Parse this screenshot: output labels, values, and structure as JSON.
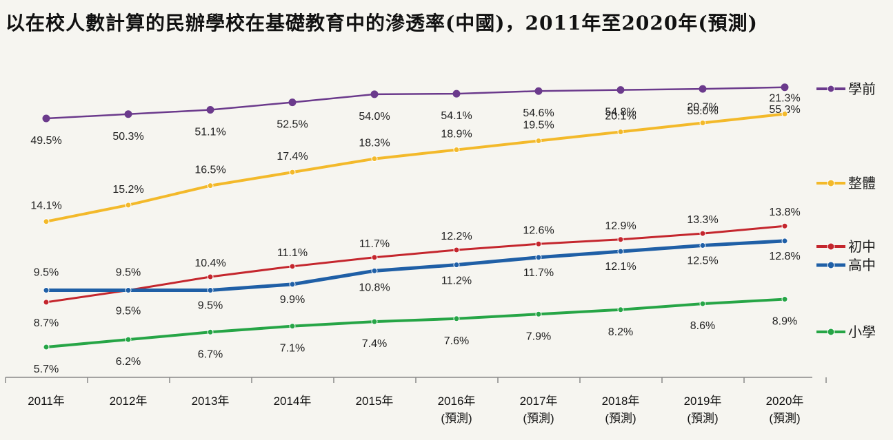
{
  "chart_data": {
    "type": "line",
    "title": "以在校人數計算的民辦學校在基礎教育中的滲透率(中國)，2011年至2020年(預測)",
    "categories": [
      "2011年",
      "2012年",
      "2013年",
      "2014年",
      "2015年",
      "2016年",
      "2017年",
      "2018年",
      "2019年",
      "2020年"
    ],
    "category_notes": [
      "",
      "",
      "",
      "",
      "",
      "(預測)",
      "(預測)",
      "(預測)",
      "(預測)",
      "(預測)"
    ],
    "ylim": [
      0,
      60
    ],
    "grid": false,
    "legend_position": "right",
    "series": [
      {
        "name": "學前",
        "color": "#6b3a8c",
        "values": [
          49.5,
          50.3,
          51.1,
          52.5,
          54.0,
          54.1,
          54.6,
          54.8,
          55.0,
          55.3
        ],
        "labels": [
          "49.5%",
          "50.3%",
          "51.1%",
          "52.5%",
          "54.0%",
          "54.1%",
          "54.6%",
          "54.8%",
          "55.0%",
          "55.3%"
        ]
      },
      {
        "name": "整體",
        "color": "#f3b92a",
        "values": [
          14.1,
          15.2,
          16.5,
          17.4,
          18.3,
          18.9,
          19.5,
          20.1,
          20.7,
          21.3
        ],
        "labels": [
          "14.1%",
          "15.2%",
          "16.5%",
          "17.4%",
          "18.3%",
          "18.9%",
          "19.5%",
          "20.1%",
          "20.7%",
          "21.3%"
        ]
      },
      {
        "name": "初中",
        "color": "#c4262d",
        "values": [
          8.7,
          9.5,
          10.4,
          11.1,
          11.7,
          12.2,
          12.6,
          12.9,
          13.3,
          13.8
        ],
        "labels": [
          "8.7%",
          "9.5%",
          "10.4%",
          "11.1%",
          "11.7%",
          "12.2%",
          "12.6%",
          "12.9%",
          "13.3%",
          "13.8%"
        ]
      },
      {
        "name": "高中",
        "color": "#1f5fa6",
        "values": [
          9.5,
          9.5,
          9.5,
          9.9,
          10.8,
          11.2,
          11.7,
          12.1,
          12.5,
          12.8
        ],
        "labels": [
          "9.5%",
          "9.5%",
          "9.5%",
          "9.9%",
          "10.8%",
          "11.2%",
          "11.7%",
          "12.1%",
          "12.5%",
          "12.8%"
        ]
      },
      {
        "name": "小學",
        "color": "#26a546",
        "values": [
          5.7,
          6.2,
          6.7,
          7.1,
          7.4,
          7.6,
          7.9,
          8.2,
          8.6,
          8.9
        ],
        "labels": [
          "5.7%",
          "6.2%",
          "6.7%",
          "7.1%",
          "7.4%",
          "7.6%",
          "7.9%",
          "8.2%",
          "8.6%",
          "8.9%"
        ]
      }
    ]
  }
}
